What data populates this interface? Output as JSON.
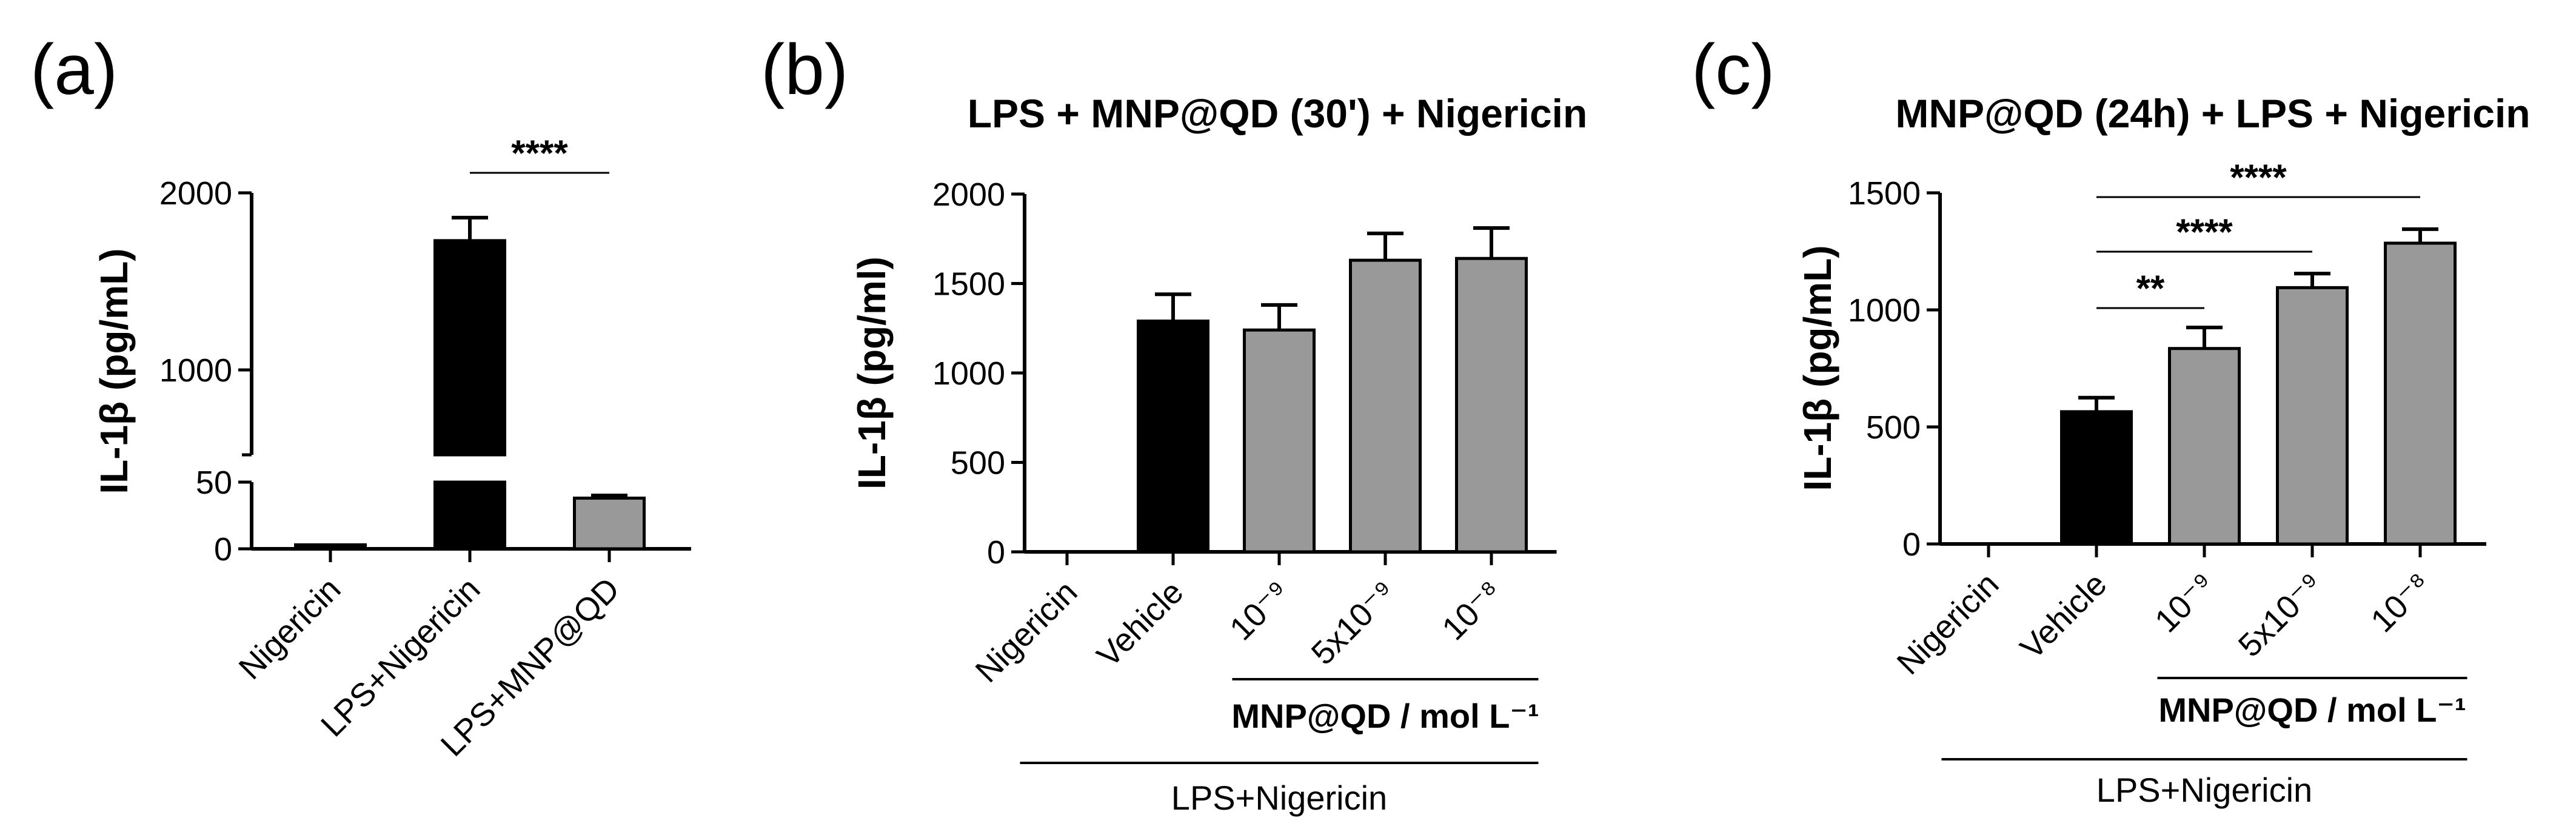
{
  "chart_data": [
    {
      "panel": "(a)",
      "type": "bar",
      "title": "",
      "ylabel": "IL-1β (pg/mL)",
      "ylim": [
        0,
        2000
      ],
      "y_axis_break": [
        50,
        1000
      ],
      "yticks": [
        "0",
        "50",
        "1000",
        "2000"
      ],
      "categories": [
        "Nigericin",
        "LPS+Nigericin",
        "LPS+MNP@QD"
      ],
      "values": [
        3,
        1730,
        38
      ],
      "errors": [
        0,
        130,
        2
      ],
      "colors": [
        "#000000",
        "#000000",
        "#999999"
      ],
      "significance": [
        {
          "from": 1,
          "to": 2,
          "label": "****"
        }
      ]
    },
    {
      "panel": "(b)",
      "type": "bar",
      "title": "LPS + MNP@QD (30') + Nigericin",
      "ylabel": "IL-1β (pg/ml)",
      "ylim": [
        0,
        2000
      ],
      "yticks": [
        "0",
        "500",
        "1000",
        "1500",
        "2000"
      ],
      "categories": [
        "Nigericin",
        "Vehicle",
        "10⁻⁹",
        "5x10⁻⁹",
        "10⁻⁸"
      ],
      "values": [
        0,
        1290,
        1240,
        1630,
        1640
      ],
      "errors": [
        0,
        150,
        140,
        150,
        170
      ],
      "colors": [
        "#000000",
        "#000000",
        "#999999",
        "#999999",
        "#999999"
      ],
      "group_labels": [
        {
          "label": "MNP@QD / mol L⁻¹",
          "from": 2,
          "to": 4
        },
        {
          "label": "LPS+Nigericin",
          "from": 0,
          "to": 4
        }
      ],
      "significance": []
    },
    {
      "panel": "(c)",
      "type": "bar",
      "title": "MNP@QD (24h) + LPS + Nigericin",
      "ylabel": "IL-1β (pg/mL)",
      "ylim": [
        0,
        1500
      ],
      "yticks": [
        "0",
        "500",
        "1000",
        "1500"
      ],
      "categories": [
        "Nigericin",
        "Vehicle",
        "10⁻⁹",
        "5x10⁻⁹",
        "10⁻⁸"
      ],
      "values": [
        0,
        565,
        835,
        1095,
        1285
      ],
      "errors": [
        0,
        60,
        90,
        60,
        60
      ],
      "colors": [
        "#000000",
        "#000000",
        "#999999",
        "#999999",
        "#999999"
      ],
      "group_labels": [
        {
          "label": "MNP@QD / mol L⁻¹",
          "from": 2,
          "to": 4
        },
        {
          "label": "LPS+Nigericin",
          "from": 0,
          "to": 4
        }
      ],
      "significance": [
        {
          "from": 1,
          "to": 2,
          "label": "**"
        },
        {
          "from": 1,
          "to": 3,
          "label": "****"
        },
        {
          "from": 1,
          "to": 4,
          "label": "****"
        }
      ]
    }
  ]
}
